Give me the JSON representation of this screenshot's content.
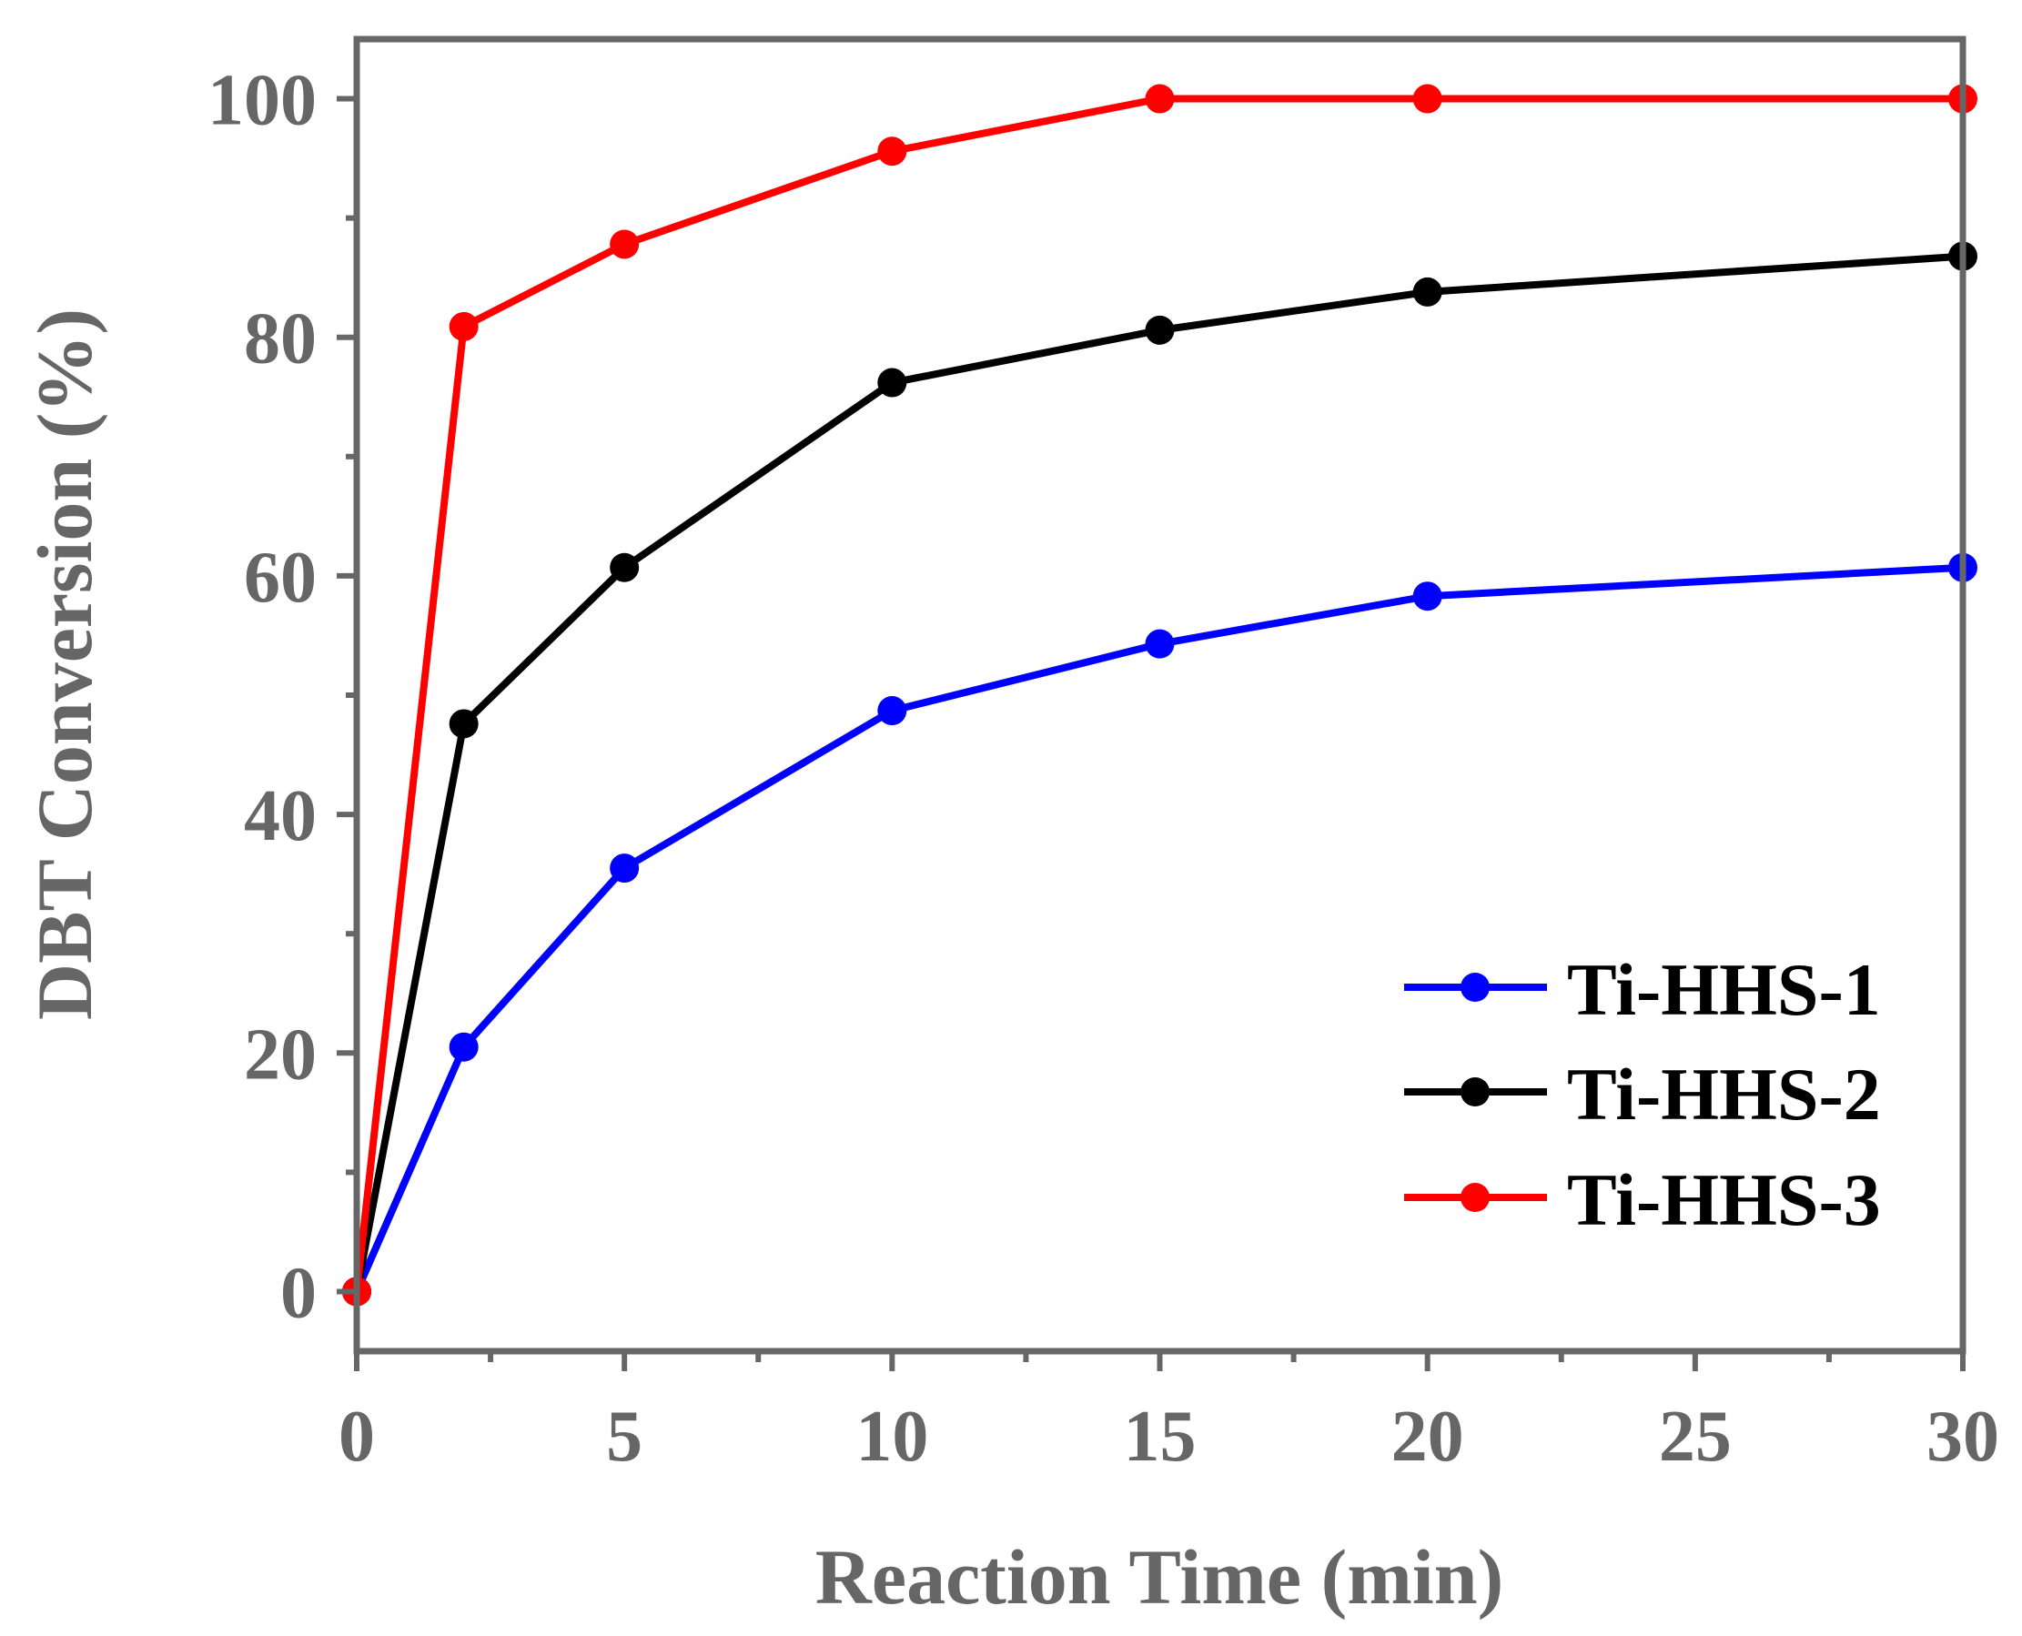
{
  "chart_data": {
    "type": "line",
    "title": "",
    "xlabel": "Reaction Time (min)",
    "ylabel": "DBT Conversion (%)",
    "xlim": [
      0,
      30
    ],
    "ylim": [
      -5,
      105
    ],
    "xticks": [
      0,
      5,
      10,
      15,
      20,
      25,
      30
    ],
    "yticks": [
      0,
      20,
      40,
      60,
      80,
      100
    ],
    "x_minor_ticks": [
      2.5,
      7.5,
      12.5,
      17.5,
      22.5,
      27.5
    ],
    "y_minor_ticks": [
      10,
      30,
      50,
      70,
      90
    ],
    "grid": false,
    "legend_position": "bottom-right",
    "axis_color": "#666666",
    "series": [
      {
        "name": "Ti-HHS-1",
        "color": "#0000ff",
        "x": [
          0,
          2,
          5,
          10,
          15,
          20,
          30
        ],
        "y": [
          0,
          20.5,
          35.5,
          48.7,
          54.3,
          58.3,
          60.7
        ]
      },
      {
        "name": "Ti-HHS-2",
        "color": "#000000",
        "x": [
          0,
          2,
          5,
          10,
          15,
          20,
          30
        ],
        "y": [
          0,
          47.6,
          60.7,
          76.2,
          80.6,
          83.8,
          86.8
        ]
      },
      {
        "name": "Ti-HHS-3",
        "color": "#ff0000",
        "x": [
          0,
          2,
          5,
          10,
          15,
          20,
          30
        ],
        "y": [
          0,
          80.9,
          87.8,
          95.6,
          100,
          100,
          100
        ]
      }
    ]
  }
}
